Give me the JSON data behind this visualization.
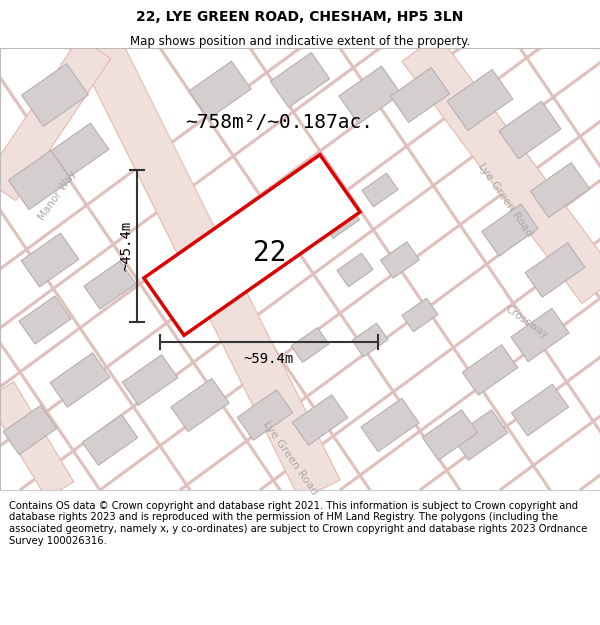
{
  "title": "22, LYE GREEN ROAD, CHESHAM, HP5 3LN",
  "subtitle": "Map shows position and indicative extent of the property.",
  "footer": "Contains OS data © Crown copyright and database right 2021. This information is subject to Crown copyright and database rights 2023 and is reproduced with the permission of HM Land Registry. The polygons (including the associated geometry, namely x, y co-ordinates) are subject to Crown copyright and database rights 2023 Ordnance Survey 100026316.",
  "area_label": "~758m²/~0.187ac.",
  "width_label": "~59.4m",
  "height_label": "~45.4m",
  "plot_number": "22",
  "map_bg_color": "#f9f5f5",
  "road_fill_color": "#f0e0dc",
  "road_edge_color": "#e8b8b0",
  "building_color": "#d4cece",
  "building_edge_color": "#b8b0b0",
  "plot_color": "#dd0000",
  "dim_line_color": "#333333",
  "road_label_color": "#aaaaaa",
  "title_fontsize": 10,
  "subtitle_fontsize": 8.5,
  "footer_fontsize": 7.2,
  "area_fontsize": 14,
  "number_fontsize": 20,
  "dim_fontsize": 10,
  "road_label_fontsize": 8
}
